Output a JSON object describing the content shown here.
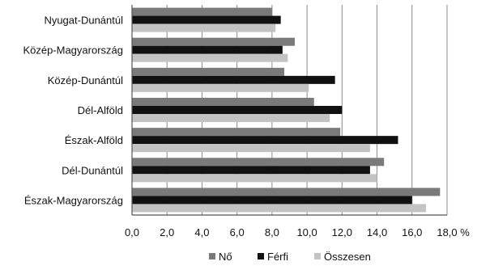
{
  "chart_data": {
    "type": "bar",
    "orientation": "horizontal",
    "categories": [
      "Nyugat-Dunántúl",
      "Közép-Magyarország",
      "Közép-Dunántúl",
      "Dél-Alföld",
      "Észak-Alföld",
      "Dél-Dunántúl",
      "Észak-Magyarország"
    ],
    "series": [
      {
        "name": "Nő",
        "color": "#7a7a7a",
        "values": [
          8.0,
          9.3,
          8.7,
          10.4,
          11.9,
          14.4,
          17.6
        ]
      },
      {
        "name": "Férfi",
        "color": "#111111",
        "values": [
          8.5,
          8.6,
          11.6,
          12.0,
          15.2,
          13.6,
          16.0
        ]
      },
      {
        "name": "Összesen",
        "color": "#c3c3c3",
        "values": [
          8.2,
          8.9,
          10.1,
          11.3,
          13.6,
          14.0,
          16.8
        ]
      }
    ],
    "x_ticks": [
      "0,0",
      "2,0",
      "4,0",
      "6,0",
      "8,0",
      "10,0",
      "12,0",
      "14,0",
      "16,0",
      "18,0"
    ],
    "x_unit": "%",
    "xlim": [
      0,
      18
    ],
    "grid": "vertical",
    "legend_position": "bottom"
  }
}
